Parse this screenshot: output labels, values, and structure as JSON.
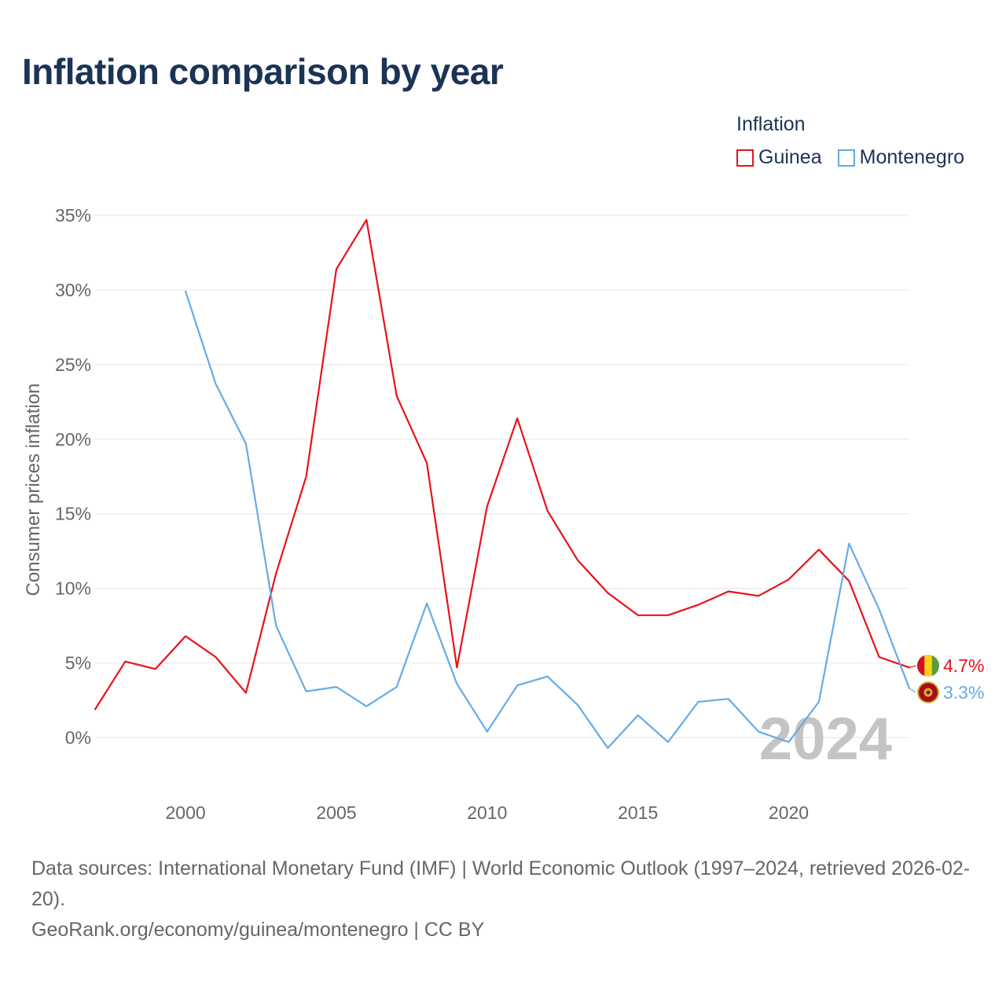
{
  "title": "Inflation comparison by year",
  "legend": {
    "title": "Inflation",
    "items": [
      {
        "name": "Guinea",
        "color": "#e8121a"
      },
      {
        "name": "Montenegro",
        "color": "#66abe6"
      }
    ]
  },
  "chart_data": {
    "type": "line",
    "title": "Inflation comparison by year",
    "xlabel": "",
    "ylabel": "Consumer prices inflation",
    "xlim": [
      1997,
      2024
    ],
    "ylim": [
      -3.5,
      36
    ],
    "y_ticks": [
      0,
      5,
      10,
      15,
      20,
      25,
      30,
      35
    ],
    "y_tick_labels": [
      "0%",
      "5%",
      "10%",
      "15%",
      "20%",
      "25%",
      "30%",
      "35%"
    ],
    "x_ticks": [
      2000,
      2005,
      2010,
      2015,
      2020
    ],
    "x_tick_labels": [
      "2000",
      "2005",
      "2010",
      "2015",
      "2020"
    ],
    "grid": true,
    "legend_position": "top-right",
    "watermark": "2024",
    "series": [
      {
        "name": "Guinea",
        "color": "#e8121a",
        "end_label": "4.7%",
        "x": [
          1997,
          1998,
          1999,
          2000,
          2001,
          2002,
          2003,
          2004,
          2005,
          2006,
          2007,
          2008,
          2009,
          2010,
          2011,
          2012,
          2013,
          2014,
          2015,
          2016,
          2017,
          2018,
          2019,
          2020,
          2021,
          2022,
          2023,
          2024
        ],
        "values": [
          1.9,
          5.1,
          4.6,
          6.8,
          5.4,
          3.0,
          11.0,
          17.5,
          31.4,
          34.7,
          22.9,
          18.4,
          4.7,
          15.5,
          21.4,
          15.2,
          11.9,
          9.7,
          8.2,
          8.2,
          8.9,
          9.8,
          9.5,
          10.6,
          12.6,
          10.5,
          5.4,
          4.7
        ]
      },
      {
        "name": "Montenegro",
        "color": "#66abe6",
        "end_label": "3.3%",
        "x": [
          2000,
          2001,
          2002,
          2003,
          2004,
          2005,
          2006,
          2007,
          2008,
          2009,
          2010,
          2011,
          2012,
          2013,
          2014,
          2015,
          2016,
          2017,
          2018,
          2019,
          2020,
          2021,
          2022,
          2023,
          2024
        ],
        "values": [
          29.9,
          23.7,
          19.7,
          7.5,
          3.1,
          3.4,
          2.1,
          3.4,
          9.0,
          3.6,
          0.4,
          3.5,
          4.1,
          2.2,
          -0.7,
          1.5,
          -0.3,
          2.4,
          2.6,
          0.4,
          -0.3,
          2.4,
          13.0,
          8.6,
          3.3
        ]
      }
    ]
  },
  "footer": {
    "sources": "Data sources: International Monetary Fund (IMF) | World Economic Outlook (1997–2024, retrieved 2026-02-20).",
    "credit": "GeoRank.org/economy/guinea/montenegro | CC BY"
  }
}
